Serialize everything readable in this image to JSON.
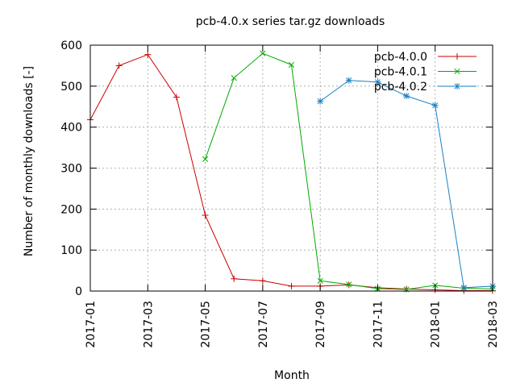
{
  "chart_data": {
    "type": "line",
    "title": "pcb-4.0.x series tar.gz downloads",
    "xlabel": "Month",
    "ylabel": "Number of monthly downloads [-]",
    "xlim": [
      "2017-01",
      "2018-03"
    ],
    "ylim": [
      0,
      600
    ],
    "x_ticks": [
      "2017-01",
      "2017-03",
      "2017-05",
      "2017-07",
      "2017-09",
      "2017-11",
      "2018-01",
      "2018-03"
    ],
    "y_ticks": [
      0,
      100,
      200,
      300,
      400,
      500,
      600
    ],
    "grid": true,
    "legend_position": "top-right",
    "series": [
      {
        "name": "pcb-4.0.0",
        "color": "#cc0000",
        "marker": "plus",
        "x": [
          "2017-01",
          "2017-02",
          "2017-03",
          "2017-04",
          "2017-05",
          "2017-06",
          "2017-07",
          "2017-08",
          "2017-09",
          "2017-10",
          "2017-11",
          "2017-12",
          "2018-01",
          "2018-02",
          "2018-03"
        ],
        "values": [
          418,
          550,
          577,
          473,
          185,
          30,
          25,
          12,
          12,
          15,
          8,
          5,
          3,
          1,
          1
        ]
      },
      {
        "name": "pcb-4.0.1",
        "color": "#00aa00",
        "marker": "cross",
        "x": [
          "2017-05",
          "2017-06",
          "2017-07",
          "2017-08",
          "2017-09",
          "2017-10",
          "2017-11",
          "2017-12",
          "2018-01",
          "2018-02",
          "2018-03"
        ],
        "values": [
          322,
          520,
          580,
          552,
          25,
          16,
          6,
          4,
          14,
          7,
          5
        ]
      },
      {
        "name": "pcb-4.0.2",
        "color": "#1a7fc4",
        "marker": "star",
        "x": [
          "2017-09",
          "2017-10",
          "2017-11",
          "2017-12",
          "2018-01",
          "2018-02",
          "2018-03"
        ],
        "values": [
          463,
          514,
          510,
          476,
          453,
          8,
          12
        ]
      }
    ]
  }
}
